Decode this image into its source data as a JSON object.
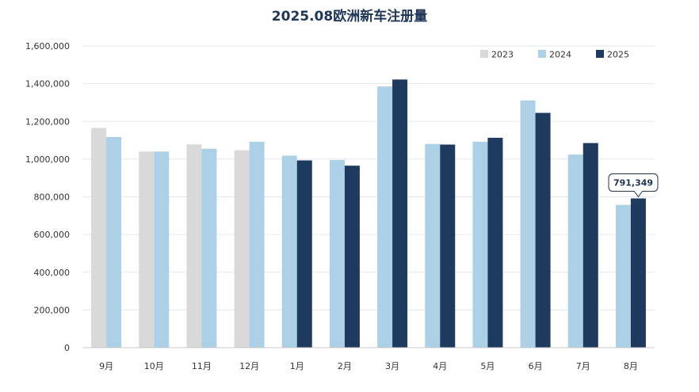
{
  "chart_data": {
    "type": "bar",
    "title": "2025.08欧洲新车注册量",
    "categories": [
      "9月",
      "10月",
      "11月",
      "12月",
      "1月",
      "2月",
      "3月",
      "4月",
      "5月",
      "6月",
      "7月",
      "8月"
    ],
    "series": [
      {
        "name": "2023",
        "color": "#d9d9d9",
        "values": [
          1165000,
          1040000,
          1078000,
          1047000,
          null,
          null,
          null,
          null,
          null,
          null,
          null,
          null
        ]
      },
      {
        "name": "2024",
        "color": "#acd0e6",
        "values": [
          1117000,
          1040000,
          1055000,
          1092000,
          1018000,
          995000,
          1385000,
          1080000,
          1092000,
          1311000,
          1024000,
          757000
        ]
      },
      {
        "name": "2025",
        "color": "#1f3a5f",
        "values": [
          null,
          null,
          null,
          null,
          993000,
          965000,
          1422000,
          1077000,
          1113000,
          1245000,
          1085000,
          791349
        ]
      }
    ],
    "ylim": [
      0,
      1600000
    ],
    "yticks": [
      "0",
      "200,000",
      "400,000",
      "600,000",
      "800,000",
      "1,000,000",
      "1,200,000",
      "1,400,000",
      "1,600,000"
    ],
    "grid": true,
    "legend_position": "top-right",
    "annotation": {
      "category": "8月",
      "series": "2025",
      "text": "791,349"
    }
  }
}
